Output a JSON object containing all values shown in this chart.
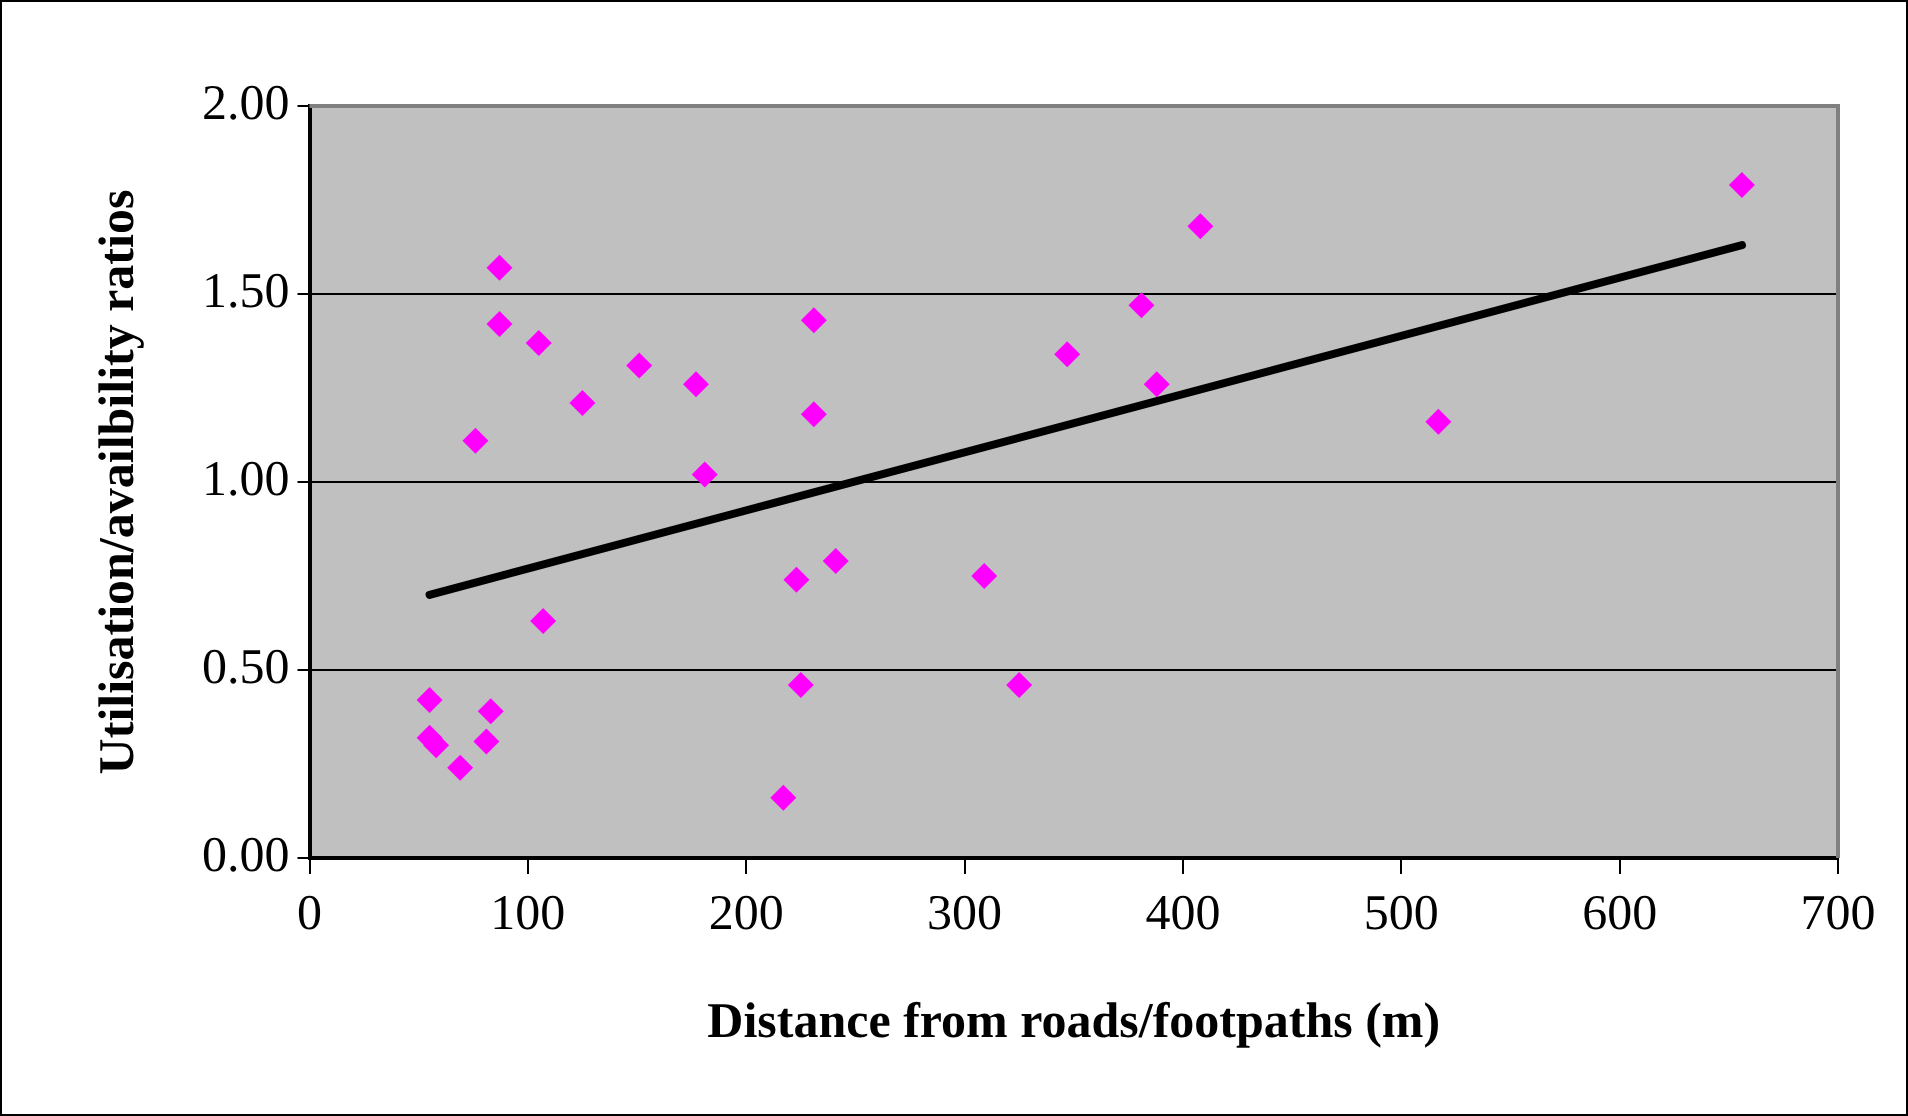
{
  "chart_data": {
    "type": "scatter",
    "xlabel": "Distance from roads/footpaths (m)",
    "ylabel": "Utilisation/availbility ratios",
    "xlim": [
      0,
      700
    ],
    "xticks": [
      0,
      100,
      200,
      300,
      400,
      500,
      600,
      700
    ],
    "ylim": [
      0,
      2
    ],
    "yticks": [
      {
        "value": 0,
        "label": "0.00"
      },
      {
        "value": 0.5,
        "label": "0.50"
      },
      {
        "value": 1,
        "label": "1.00"
      },
      {
        "value": 1.5,
        "label": "1.50"
      },
      {
        "value": 2,
        "label": "2.00"
      }
    ],
    "grid": "y",
    "legend": false,
    "marker": "diamond",
    "series": [
      {
        "type": "scatter",
        "color": "#ff00ff",
        "x": [
          55,
          55,
          58,
          69,
          81,
          83,
          76,
          87,
          87,
          105,
          107,
          125,
          151,
          177,
          181,
          217,
          223,
          225,
          231,
          231,
          241,
          309,
          325,
          347,
          381,
          388,
          408,
          517,
          656
        ],
        "values": [
          0.42,
          0.32,
          0.3,
          0.24,
          0.31,
          0.39,
          1.11,
          1.57,
          1.42,
          1.37,
          0.63,
          1.21,
          1.31,
          1.26,
          1.02,
          0.16,
          0.74,
          0.46,
          1.43,
          1.18,
          0.79,
          0.75,
          0.46,
          1.34,
          1.47,
          1.26,
          1.68,
          1.16,
          1.79
        ]
      },
      {
        "type": "line",
        "color": "#000000",
        "x": [
          55,
          656
        ],
        "values": [
          0.7,
          1.63
        ],
        "marker": "none",
        "line_style": "solid"
      }
    ]
  }
}
